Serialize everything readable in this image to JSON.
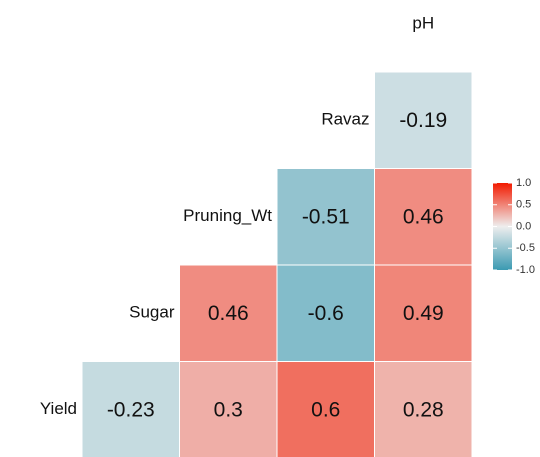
{
  "chart_data": {
    "type": "heatmap",
    "variables": [
      "Yield",
      "Sugar",
      "Pruning_Wt",
      "Ravaz",
      "pH"
    ],
    "values": [
      [
        null,
        -0.23,
        0.3,
        0.6,
        0.28
      ],
      [
        null,
        null,
        0.46,
        -0.6,
        0.49
      ],
      [
        null,
        null,
        null,
        -0.51,
        0.46
      ],
      [
        null,
        null,
        null,
        null,
        -0.19
      ]
    ],
    "colorscale": {
      "low": "#3B9AB2",
      "mid": "#EEEEEE",
      "high": "#F21A00"
    },
    "clim": [
      -1,
      1
    ],
    "cticks": [
      {
        "value": 1.0,
        "label": "1.0"
      },
      0.5,
      {
        "value": 0.0,
        "label": "0.0"
      },
      -0.5,
      {
        "value": -1.0,
        "label": "-1.0"
      }
    ]
  }
}
